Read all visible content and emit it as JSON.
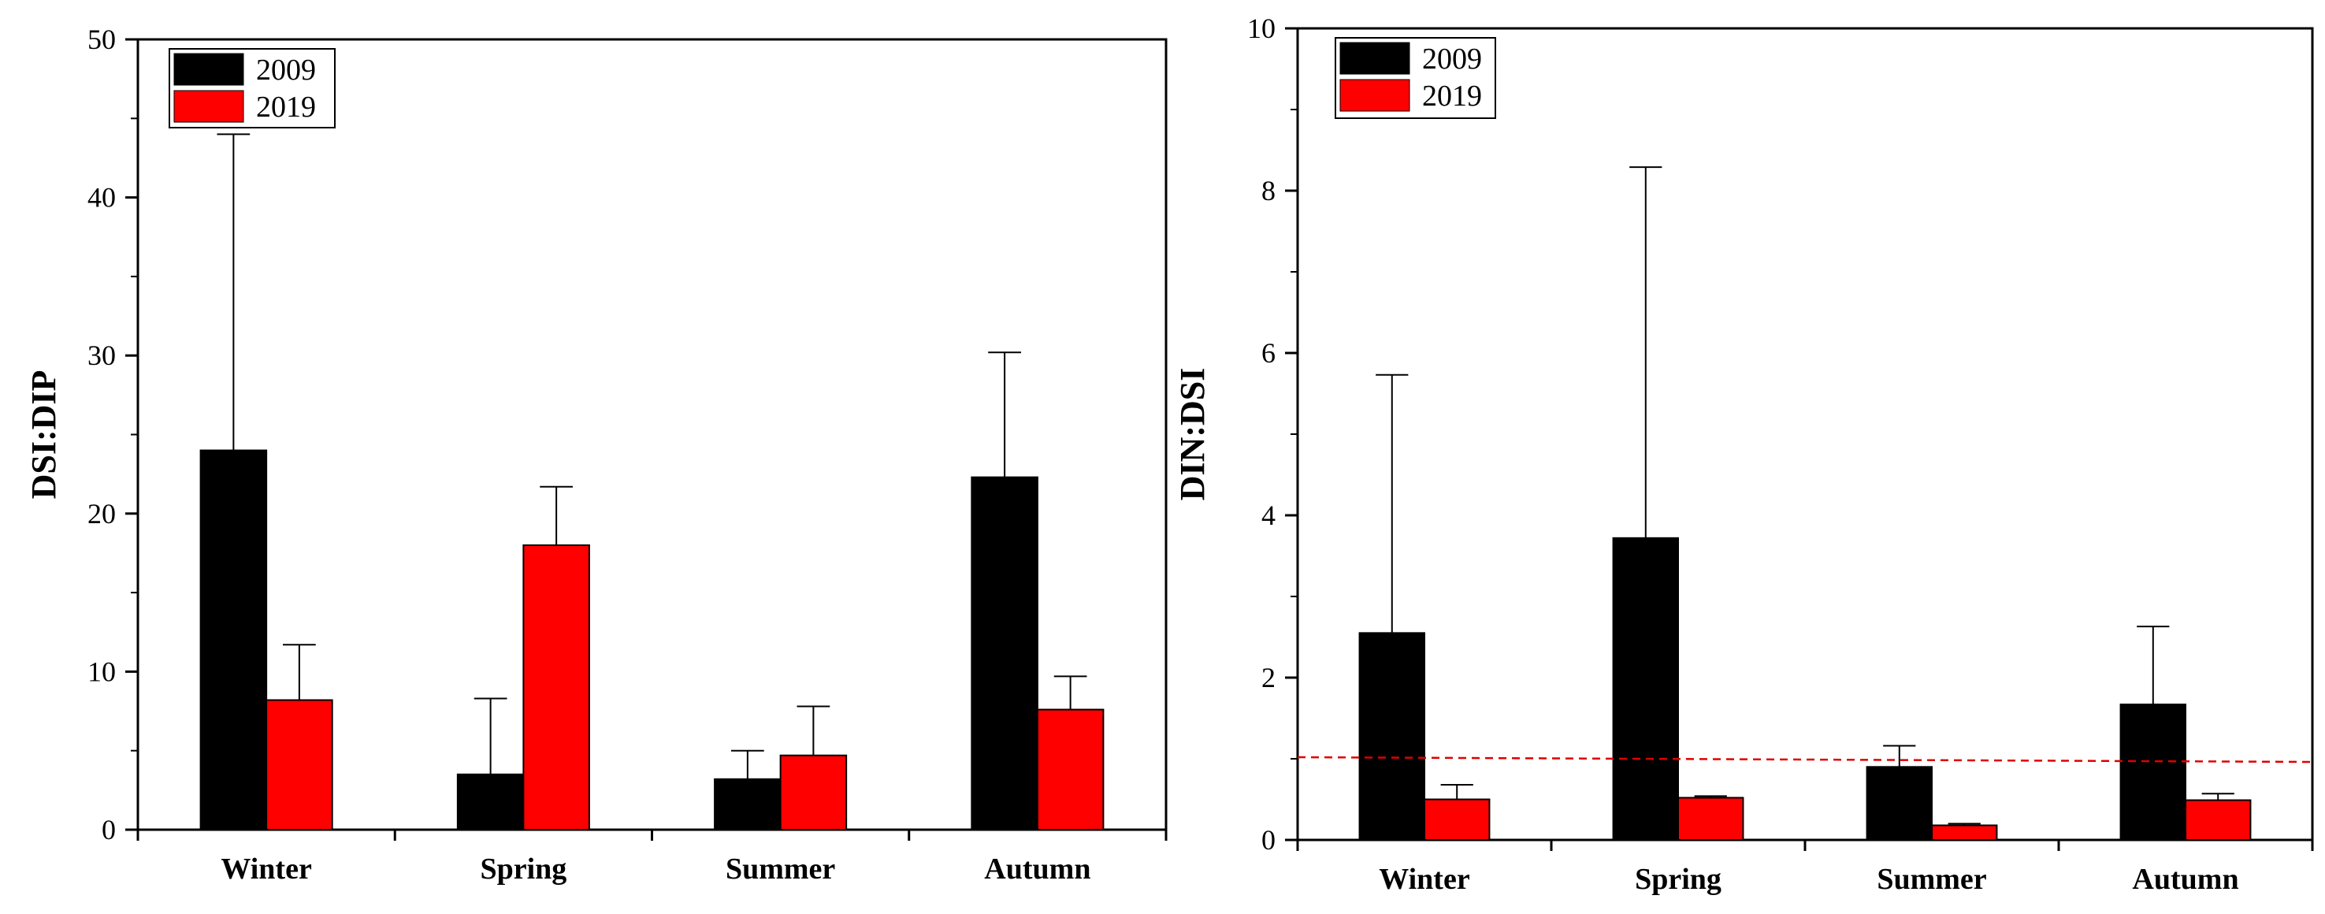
{
  "chart_data": [
    {
      "type": "bar",
      "title": "",
      "xlabel": "",
      "ylabel": "DSI:DIP",
      "ylim": [
        0,
        50
      ],
      "yticks": [
        0,
        10,
        20,
        30,
        40,
        50
      ],
      "categories": [
        "Winter",
        "Spring",
        "Summer",
        "Autumn"
      ],
      "legend_position": "top-left",
      "series": [
        {
          "name": "2009",
          "color": "#000000",
          "values": [
            24.0,
            3.5,
            3.2,
            22.3
          ],
          "errors": [
            20.0,
            4.8,
            1.8,
            7.9
          ]
        },
        {
          "name": "2019",
          "color": "#ff0000",
          "values": [
            8.2,
            18.0,
            4.7,
            7.6
          ],
          "errors": [
            3.5,
            3.7,
            3.1,
            2.1
          ]
        }
      ]
    },
    {
      "type": "bar",
      "title": "",
      "xlabel": "",
      "ylabel": "DIN:DSI",
      "ylim": [
        0,
        10
      ],
      "yticks": [
        0,
        2,
        4,
        6,
        8,
        10
      ],
      "categories": [
        "Winter",
        "Spring",
        "Summer",
        "Autumn"
      ],
      "legend_position": "top-left",
      "reference_line": {
        "value": 1,
        "style": "dashed",
        "color": "#e00000"
      },
      "series": [
        {
          "name": "2009",
          "color": "#000000",
          "values": [
            2.55,
            3.72,
            0.9,
            1.67
          ],
          "errors": [
            3.18,
            4.57,
            0.26,
            0.96
          ]
        },
        {
          "name": "2019",
          "color": "#ff0000",
          "values": [
            0.5,
            0.52,
            0.18,
            0.49
          ],
          "errors": [
            0.18,
            0.02,
            0.02,
            0.08
          ]
        }
      ]
    }
  ]
}
